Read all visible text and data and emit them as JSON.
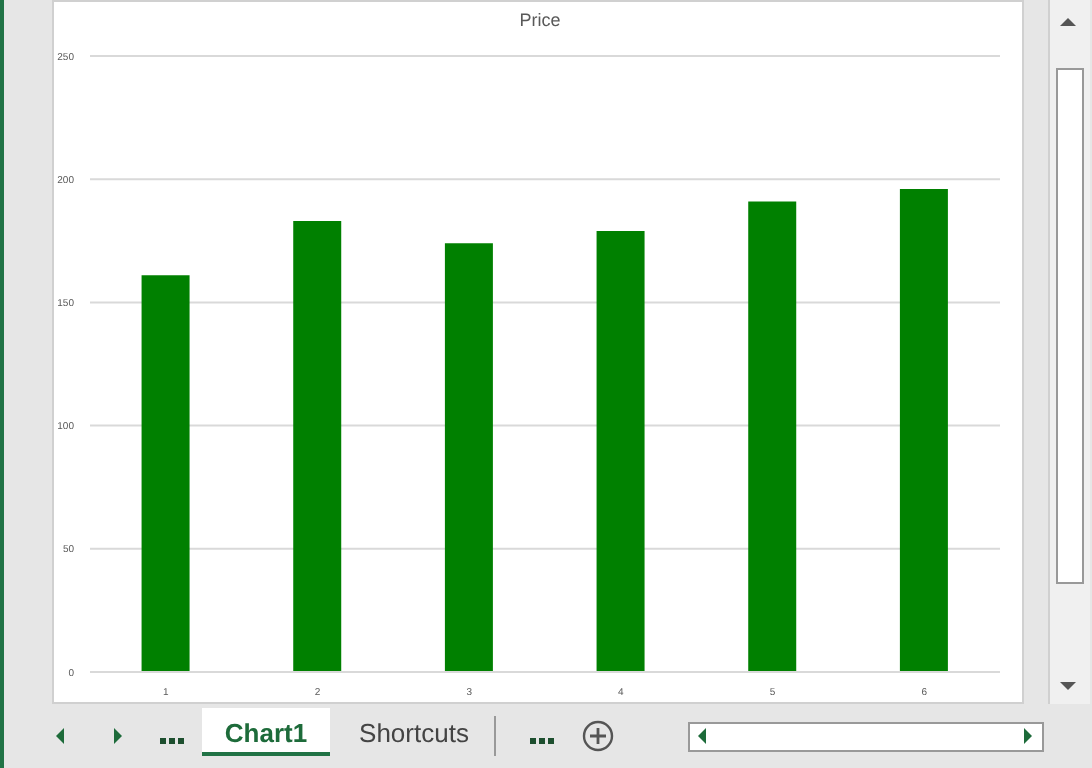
{
  "chart_data": {
    "type": "bar",
    "title": "Price",
    "categories": [
      "1",
      "2",
      "3",
      "4",
      "5",
      "6"
    ],
    "values": [
      161,
      183,
      174,
      179,
      191,
      196
    ],
    "color": "#008000",
    "ylim": [
      0,
      250
    ],
    "yticks": [
      0,
      50,
      100,
      150,
      200,
      250
    ],
    "grid": "y",
    "legend": false,
    "annotations": [
      "Chart1",
      "Shortcuts"
    ]
  }
}
